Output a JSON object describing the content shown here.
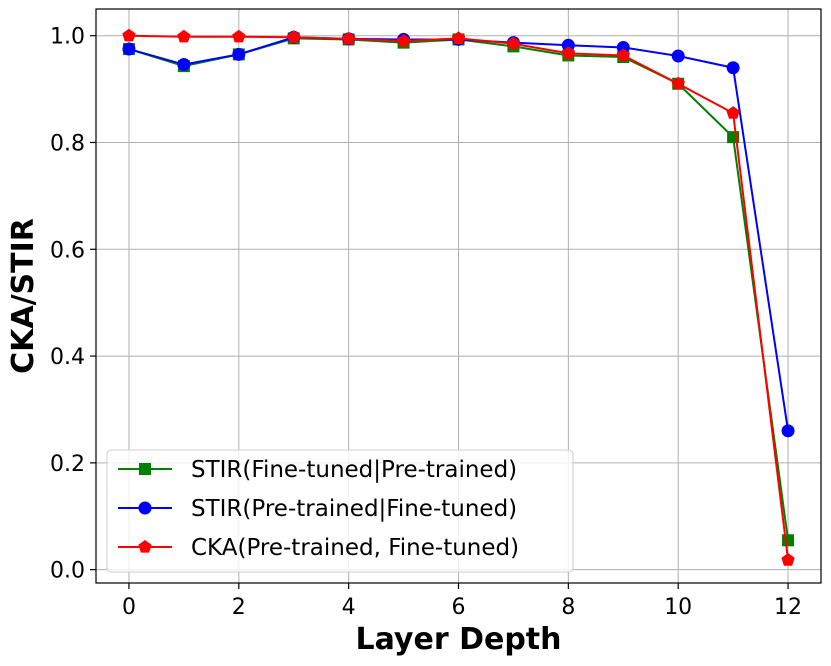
{
  "chart_data": {
    "type": "line",
    "title": "",
    "xlabel": "Layer Depth",
    "ylabel": "CKA/STIR",
    "xlim": [
      -0.6,
      12.6
    ],
    "ylim": [
      -0.025,
      1.05
    ],
    "xticks": [
      0,
      2,
      4,
      6,
      8,
      10,
      12
    ],
    "yticks": [
      0.0,
      0.2,
      0.4,
      0.6,
      0.8,
      1.0
    ],
    "xtick_labels": [
      "0",
      "2",
      "4",
      "6",
      "8",
      "10",
      "12"
    ],
    "ytick_labels": [
      "0.0",
      "0.2",
      "0.4",
      "0.6",
      "0.8",
      "1.0"
    ],
    "grid": true,
    "legend_position": "lower-left",
    "x": [
      0,
      1,
      2,
      3,
      4,
      5,
      6,
      7,
      8,
      9,
      10,
      11,
      12
    ],
    "series": [
      {
        "name": "STIR(Fine-tuned|Pre-trained)",
        "color": "#008000",
        "marker": "square",
        "values": [
          0.975,
          0.943,
          0.965,
          0.995,
          0.993,
          0.987,
          0.993,
          0.98,
          0.963,
          0.96,
          0.91,
          0.81,
          0.055
        ]
      },
      {
        "name": "STIR(Pre-trained|Fine-tuned)",
        "color": "#0000ff",
        "marker": "circle",
        "values": [
          0.975,
          0.946,
          0.965,
          0.997,
          0.994,
          0.993,
          0.993,
          0.987,
          0.982,
          0.978,
          0.962,
          0.94,
          0.26
        ]
      },
      {
        "name": "CKA(Pre-trained, Fine-tuned)",
        "color": "#ff0000",
        "marker": "pentagon",
        "values": [
          1.0,
          0.998,
          0.998,
          0.997,
          0.994,
          0.99,
          0.995,
          0.985,
          0.967,
          0.963,
          0.91,
          0.855,
          0.018
        ]
      }
    ]
  }
}
